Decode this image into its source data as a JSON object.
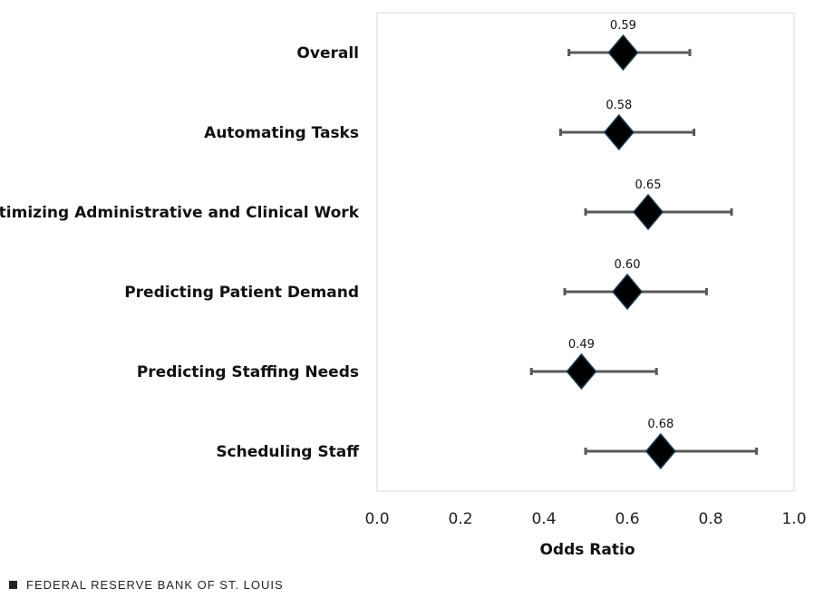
{
  "chart_data": {
    "type": "scatter",
    "subtype": "forest-plot",
    "categories": [
      "Overall",
      "Automating Tasks",
      "Optimizing Administrative and Clinical Work",
      "Predicting Patient Demand",
      "Predicting Staffing Needs",
      "Scheduling Staff"
    ],
    "points": [
      {
        "category": "Overall",
        "value": 0.59,
        "label": "0.59",
        "ci_low": 0.46,
        "ci_high": 0.75
      },
      {
        "category": "Automating Tasks",
        "value": 0.58,
        "label": "0.58",
        "ci_low": 0.44,
        "ci_high": 0.76
      },
      {
        "category": "Optimizing Administrative and Clinical Work",
        "value": 0.65,
        "label": "0.65",
        "ci_low": 0.5,
        "ci_high": 0.85
      },
      {
        "category": "Predicting Patient Demand",
        "value": 0.6,
        "label": "0.60",
        "ci_low": 0.45,
        "ci_high": 0.79
      },
      {
        "category": "Predicting Staffing Needs",
        "value": 0.49,
        "label": "0.49",
        "ci_low": 0.37,
        "ci_high": 0.67
      },
      {
        "category": "Scheduling Staff",
        "value": 0.68,
        "label": "0.68",
        "ci_low": 0.5,
        "ci_high": 0.91
      }
    ],
    "xlabel": "Odds Ratio",
    "xlim": [
      0.0,
      1.0
    ],
    "xticks": [
      "0.0",
      "0.2",
      "0.4",
      "0.6",
      "0.8",
      "1.0"
    ],
    "grid": false,
    "marker": "diamond",
    "colors": {
      "marker": "#000000",
      "marker_edge": "#1f3a4d",
      "errorbar": "#595959",
      "plot_border": "#d9d9d9"
    }
  },
  "footer": {
    "source": "FEDERAL RESERVE BANK OF ST. LOUIS"
  }
}
